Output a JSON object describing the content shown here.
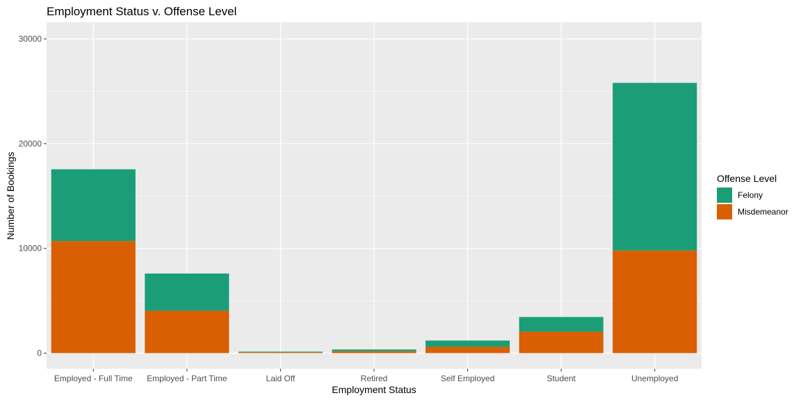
{
  "chart_data": {
    "type": "bar",
    "stacked": true,
    "title": "Employment Status v. Offense Level",
    "xlabel": "Employment Status",
    "ylabel": "Number of Bookings",
    "ylim": [
      0,
      31500
    ],
    "yticks": [
      0,
      10000,
      20000,
      30000
    ],
    "grid": true,
    "legend_position": "right",
    "categories": [
      "Employed - Full Time",
      "Employed - Part Time",
      "Laid Off",
      "Retired",
      "Self Employed",
      "Student",
      "Unemployed"
    ],
    "series": [
      {
        "name": "Misdemeanor",
        "color": "#D95F02",
        "values": [
          10700,
          4050,
          80,
          180,
          600,
          2050,
          9800
        ]
      },
      {
        "name": "Felony",
        "color": "#1B9E77",
        "values": [
          6850,
          3550,
          60,
          170,
          600,
          1400,
          16000
        ]
      }
    ],
    "legend": {
      "title": "Offense Level",
      "items": [
        {
          "name": "Felony",
          "color": "#1B9E77"
        },
        {
          "name": "Misdemeanor",
          "color": "#D95F02"
        }
      ]
    },
    "colors": {
      "panel": "#EBEBEB",
      "grid": "#FFFFFF",
      "tick": "#4d4d4d"
    }
  }
}
